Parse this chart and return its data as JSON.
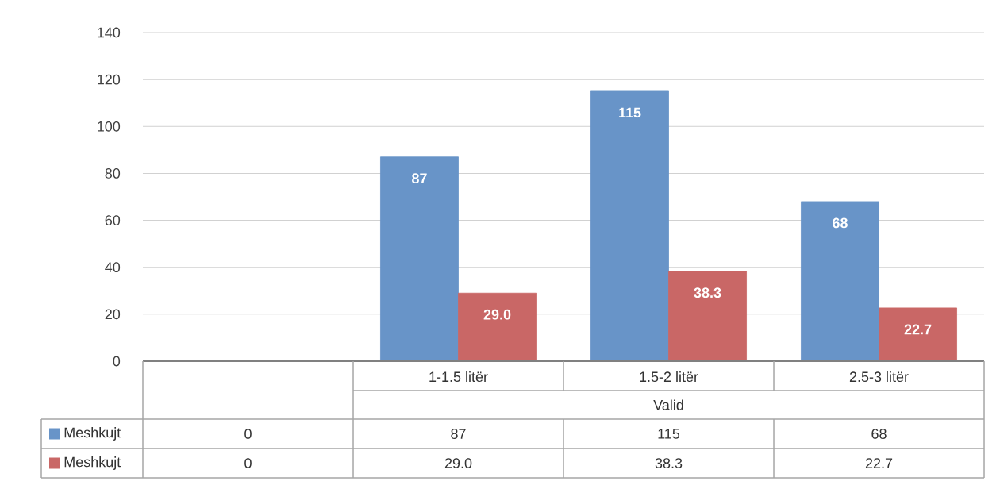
{
  "chart_data": {
    "type": "bar",
    "categories": [
      null,
      "1-1.5 litër",
      "1.5-2 litër",
      "2.5-3 litër"
    ],
    "xlabel": "Valid",
    "ylim": [
      0,
      140
    ],
    "yticks": [
      0,
      20,
      40,
      60,
      80,
      100,
      120,
      140
    ],
    "grid": "y",
    "legend": "bottom",
    "series": [
      {
        "name": "Meshkujt",
        "color": "#6894c8",
        "values": [
          0,
          87,
          115,
          68
        ],
        "value_labels": [
          "0",
          "87",
          "115",
          "68"
        ]
      },
      {
        "name": "Meshkujt",
        "color": "#c96766",
        "values": [
          0,
          29.0,
          38.3,
          22.7
        ],
        "value_labels": [
          "0",
          "29.0",
          "38.3",
          "22.7"
        ]
      }
    ]
  }
}
